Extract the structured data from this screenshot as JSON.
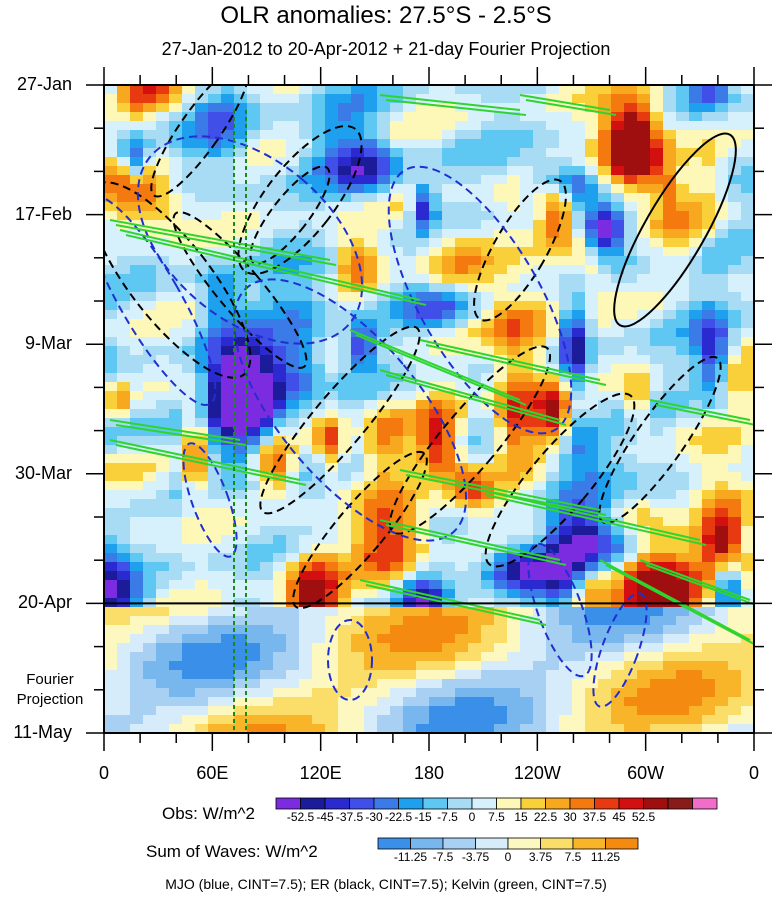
{
  "chart_data": {
    "type": "heatmap",
    "title": "OLR anomalies: 27.5°S - 2.5°S",
    "subtitle": "27-Jan-2012 to 20-Apr-2012 + 21-day Fourier Projection",
    "y_tick_labels": [
      "27-Jan",
      "17-Feb",
      "9-Mar",
      "30-Mar",
      "20-Apr",
      "11-May"
    ],
    "y_day_offsets": [
      0,
      21,
      42,
      63,
      84,
      105
    ],
    "x_tick_labels": [
      "0",
      "60E",
      "120E",
      "180",
      "120W",
      "60W",
      "0"
    ],
    "x_longitudes": [
      0,
      60,
      120,
      180,
      240,
      300,
      360
    ],
    "fourier_label": "Fourier\nProjection",
    "projection_start_day": 84,
    "obs_colorbar": {
      "label": "Obs: W/m^2",
      "levels": [
        "-52.5",
        "-45",
        "-37.5",
        "-30",
        "-22.5",
        "-15",
        "-7.5",
        "0",
        "7.5",
        "15",
        "22.5",
        "30",
        "37.5",
        "45",
        "52.5"
      ],
      "colors": [
        "#7b2be0",
        "#1c1c9a",
        "#2a2ad0",
        "#3f4fe8",
        "#3a7be8",
        "#1ea0ee",
        "#5ec8f2",
        "#a8dcf5",
        "#d6f1fb",
        "#fdf7b8",
        "#f9d03a",
        "#f7a81e",
        "#f47a10",
        "#e83a10",
        "#d40f10",
        "#a00f10",
        "#8a1b1b",
        "#f06ec8"
      ]
    },
    "waves_colorbar": {
      "label": "Sum of Waves: W/m^2",
      "levels": [
        "-11.25",
        "-7.5",
        "-3.75",
        "0",
        "3.75",
        "7.5",
        "11.25"
      ],
      "colors": [
        "#3a8fe8",
        "#78b6ee",
        "#a8d0f2",
        "#d6ecfb",
        "#fdf8c0",
        "#fbde6a",
        "#f9b52a",
        "#f58a10"
      ]
    },
    "contour_legend": "MJO (blue, CINT=7.5); ER (black, CINT=7.5); Kelvin (green, CINT=7.5)",
    "contour_colors": {
      "mjo": "#1f2fd0",
      "er": "#000000",
      "kelvin": "#2fd42f"
    }
  }
}
